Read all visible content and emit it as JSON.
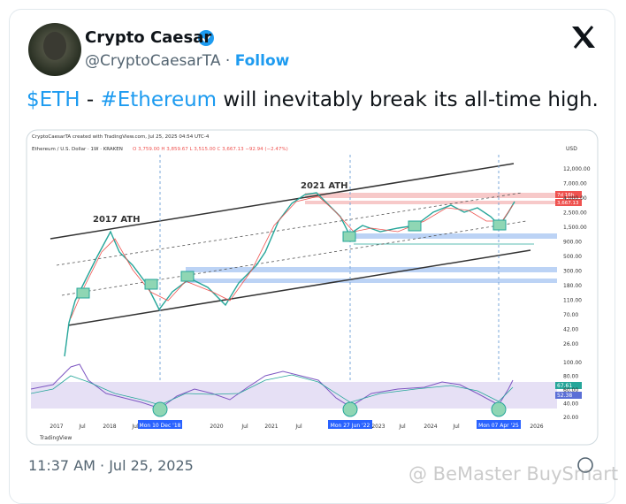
{
  "tweet": {
    "author": {
      "name": "Crypto Caesar",
      "handle": "@CryptoCaesarTA",
      "separator": "·",
      "follow": "Follow"
    },
    "text_parts": [
      "$ETH",
      " - ",
      "#Ethereum",
      " will inevitably break its all-time high."
    ],
    "timestamp": "11:37 AM · Jul 25, 2025"
  },
  "embedded_chart": {
    "header": "CryptoCaesarTA created with TradingView.com, Jul 25, 2025 04:54 UTC-4",
    "symbol": "Ethereum / U.S. Dollar · 1W · KRAKEN",
    "ohlc": "O 3,759.00  H 3,859.67  L 3,515.00  C 3,667.13  −92.94 (−2.47%)",
    "currency": "USD",
    "price_axis": [
      "12,000.00",
      "7,000.00",
      "4,000.00",
      "2,500.00",
      "1,500.00",
      "900.00",
      "500.00",
      "300.00",
      "180.00",
      "110.00",
      "70.00",
      "42.00",
      "26.00"
    ],
    "rsi_axis": [
      "100.00",
      "80.00",
      "60.00",
      "40.00",
      "20.00"
    ],
    "price_badges": [
      "7d 16h",
      "3,667.13"
    ],
    "rsi_badges": [
      "67.61",
      "52.38"
    ],
    "time_axis": [
      "2017",
      "Jul",
      "2018",
      "Jul",
      "2020",
      "Jul",
      "2021",
      "Jul",
      "2023",
      "Jul",
      "2024",
      "Jul",
      "2026"
    ],
    "date_markers": [
      "Mon 10 Dec '18",
      "Mon 27 Jun '22",
      "Mon 07 Apr '25"
    ],
    "annotations": [
      "2017 ATH",
      "2021 ATH"
    ],
    "logo": "TradingView"
  },
  "watermark": "@ BeMaster BuySmart"
}
